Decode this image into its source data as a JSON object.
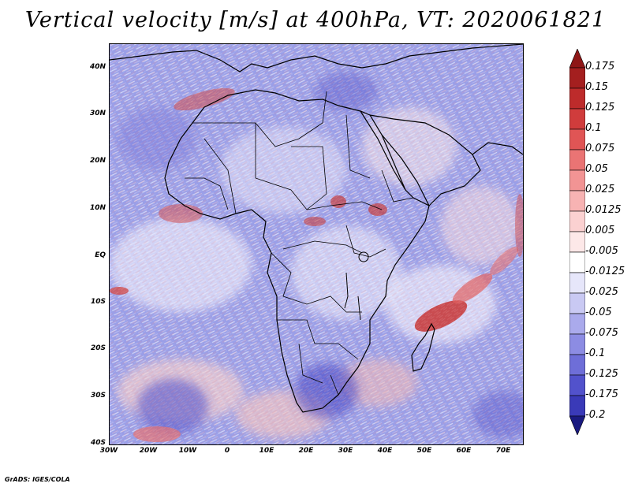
{
  "title": "Vertical velocity [m/s] at 400hPa, VT: 2020061821",
  "credit": "GrADS: IGES/COLA",
  "map": {
    "projection": "lat-lon",
    "lon_range": [
      -30,
      75
    ],
    "lat_range": [
      -40,
      45
    ],
    "lat_ticks": [
      {
        "value": 40,
        "label": "40N"
      },
      {
        "value": 30,
        "label": "30N"
      },
      {
        "value": 20,
        "label": "20N"
      },
      {
        "value": 10,
        "label": "10N"
      },
      {
        "value": 0,
        "label": "EQ"
      },
      {
        "value": -10,
        "label": "10S"
      },
      {
        "value": -20,
        "label": "20S"
      },
      {
        "value": -30,
        "label": "30S"
      },
      {
        "value": -40,
        "label": "40S"
      }
    ],
    "lon_ticks": [
      {
        "value": -30,
        "label": "30W"
      },
      {
        "value": -20,
        "label": "20W"
      },
      {
        "value": -10,
        "label": "10W"
      },
      {
        "value": 0,
        "label": "0"
      },
      {
        "value": 10,
        "label": "10E"
      },
      {
        "value": 20,
        "label": "20E"
      },
      {
        "value": 30,
        "label": "30E"
      },
      {
        "value": 40,
        "label": "40E"
      },
      {
        "value": 50,
        "label": "50E"
      },
      {
        "value": 60,
        "label": "60E"
      },
      {
        "value": 70,
        "label": "70E"
      }
    ],
    "background_color": "#8f94e6"
  },
  "colorbar": {
    "levels": [
      {
        "label": "0.175",
        "color": "#a41f1f"
      },
      {
        "label": "0.15",
        "color": "#bd2b2b"
      },
      {
        "label": "0.125",
        "color": "#d03c3c"
      },
      {
        "label": "0.1",
        "color": "#e05555"
      },
      {
        "label": "0.075",
        "color": "#ea7474"
      },
      {
        "label": "0.05",
        "color": "#f29494"
      },
      {
        "label": "0.025",
        "color": "#f7b3b3"
      },
      {
        "label": "0.0125",
        "color": "#fbd1d1"
      },
      {
        "label": "0.005",
        "color": "#fde8e8"
      },
      {
        "label": "-0.005",
        "color": "#ffffff"
      },
      {
        "label": "-0.0125",
        "color": "#e6e6fa"
      },
      {
        "label": "-0.025",
        "color": "#c9c9f3"
      },
      {
        "label": "-0.05",
        "color": "#aaaaec"
      },
      {
        "label": "-0.075",
        "color": "#8c8ce3"
      },
      {
        "label": "-0.1",
        "color": "#6e6ed8"
      },
      {
        "label": "-0.125",
        "color": "#5252cc"
      },
      {
        "label": "-0.175",
        "color": "#3a3ab8"
      },
      {
        "label": "-0.2",
        "color": "#24249c"
      }
    ],
    "top_arrow_color": "#8e1717",
    "bottom_arrow_color": "#1a1a80"
  }
}
